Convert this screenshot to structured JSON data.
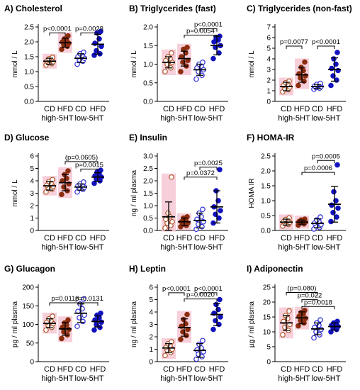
{
  "figure": {
    "colors": {
      "cd_high": "#b0572a",
      "hfd_high": "#8b2d0e",
      "cd_low": "#2a2ad6",
      "hfd_low": "#1212c0",
      "highlight_high": "#f6c7d3",
      "highlight_low": "#cfd6f7",
      "axis": "#000000"
    }
  },
  "chart_data": [
    {
      "id": "A",
      "type": "scatter",
      "title": "A) Cholesterol",
      "ylabel": "mmol / L",
      "ylim": [
        0,
        2.5
      ],
      "yticks": [
        "0.0",
        "0.5",
        "1.0",
        "1.5",
        "2.0",
        "2.5"
      ],
      "categories": [
        "CD",
        "HFD",
        "CD",
        "HFD"
      ],
      "groups": [
        "high-5HT",
        "low-5HT"
      ],
      "series": [
        {
          "category": "CD",
          "group": "high-5HT",
          "hollow": true,
          "highlight": true,
          "mean": 1.35,
          "sd": 0.1,
          "values": [
            1.22,
            1.27,
            1.3,
            1.33,
            1.36,
            1.4,
            1.43,
            1.48
          ]
        },
        {
          "category": "HFD",
          "group": "high-5HT",
          "hollow": false,
          "highlight": true,
          "mean": 1.97,
          "sd": 0.15,
          "values": [
            1.75,
            1.85,
            1.9,
            1.95,
            2.0,
            2.05,
            2.1,
            2.2
          ]
        },
        {
          "category": "CD",
          "group": "low-5HT",
          "hollow": true,
          "highlight": false,
          "mean": 1.45,
          "sd": 0.15,
          "values": [
            1.25,
            1.35,
            1.4,
            1.45,
            1.5,
            1.55,
            1.6,
            1.65
          ]
        },
        {
          "category": "HFD",
          "group": "low-5HT",
          "hollow": false,
          "highlight": false,
          "mean": 1.92,
          "sd": 0.33,
          "values": [
            1.55,
            1.6,
            1.7,
            1.85,
            1.95,
            2.1,
            2.3,
            2.35
          ]
        }
      ],
      "annotations": [
        {
          "from": 0,
          "to": 1,
          "y": 2.3,
          "text": "p<0.0001"
        },
        {
          "from": 2,
          "to": 3,
          "y": 2.3,
          "text": "p=0.0028"
        }
      ]
    },
    {
      "id": "B",
      "type": "scatter",
      "title": "B) Triglycerides (fast)",
      "ylabel": "mmol / L",
      "ylim": [
        0,
        2.0
      ],
      "yticks": [
        "0.0",
        "0.5",
        "1.0",
        "1.5",
        "2.0"
      ],
      "categories": [
        "CD",
        "HFD",
        "CD",
        "HFD"
      ],
      "groups": [
        "high-5HT",
        "low-5HT"
      ],
      "series": [
        {
          "category": "CD",
          "group": "high-5HT",
          "hollow": true,
          "highlight": true,
          "mean": 1.05,
          "sd": 0.15,
          "values": [
            0.8,
            0.9,
            1.0,
            1.05,
            1.1,
            1.15,
            1.2,
            1.3
          ]
        },
        {
          "category": "HFD",
          "group": "high-5HT",
          "hollow": false,
          "highlight": true,
          "mean": 1.15,
          "sd": 0.2,
          "values": [
            0.8,
            0.95,
            1.05,
            1.1,
            1.2,
            1.3,
            1.4,
            1.45
          ]
        },
        {
          "category": "CD",
          "group": "low-5HT",
          "hollow": true,
          "highlight": false,
          "mean": 0.85,
          "sd": 0.15,
          "values": [
            0.6,
            0.7,
            0.8,
            0.85,
            0.9,
            0.95,
            1.0,
            1.05
          ]
        },
        {
          "category": "HFD",
          "group": "low-5HT",
          "hollow": false,
          "highlight": false,
          "mean": 1.5,
          "sd": 0.25,
          "values": [
            1.15,
            1.3,
            1.45,
            1.5,
            1.6,
            1.65,
            1.7,
            1.75
          ]
        }
      ],
      "annotations": [
        {
          "from": 1,
          "to": 3,
          "y": 1.78,
          "text": "p=0.0054"
        },
        {
          "from": 2,
          "to": 3,
          "y": 1.95,
          "text": "p<0.0001"
        }
      ]
    },
    {
      "id": "C",
      "type": "scatter",
      "title": "C) Triglycerides (non-fast)",
      "ylabel": "mmol / L",
      "ylim": [
        0,
        7
      ],
      "yticks": [
        "0",
        "1",
        "2",
        "3",
        "4",
        "5",
        "6",
        "7"
      ],
      "categories": [
        "CD",
        "HFD",
        "CD",
        "HFD"
      ],
      "groups": [
        "high-5HT",
        "low-5HT"
      ],
      "series": [
        {
          "category": "CD",
          "group": "high-5HT",
          "hollow": true,
          "highlight": true,
          "mean": 1.4,
          "sd": 0.4,
          "values": [
            0.9,
            1.1,
            1.2,
            1.35,
            1.5,
            1.6,
            1.75,
            1.9
          ]
        },
        {
          "category": "HFD",
          "group": "high-5HT",
          "hollow": false,
          "highlight": true,
          "mean": 2.5,
          "sd": 0.7,
          "values": [
            1.5,
            1.9,
            2.2,
            2.4,
            2.6,
            2.9,
            3.2,
            3.7
          ]
        },
        {
          "category": "CD",
          "group": "low-5HT",
          "hollow": true,
          "highlight": false,
          "mean": 1.4,
          "sd": 0.2,
          "values": [
            1.15,
            1.25,
            1.3,
            1.4,
            1.45,
            1.5,
            1.6,
            1.7
          ]
        },
        {
          "category": "HFD",
          "group": "low-5HT",
          "hollow": false,
          "highlight": false,
          "mean": 3.0,
          "sd": 1.1,
          "values": [
            1.5,
            2.0,
            2.4,
            2.9,
            3.1,
            3.5,
            4.0,
            4.6
          ]
        }
      ],
      "annotations": [
        {
          "from": 0,
          "to": 1,
          "y": 5.2,
          "text": "p=0.0077"
        },
        {
          "from": 2,
          "to": 3,
          "y": 5.2,
          "text": "p<0.0001"
        }
      ]
    },
    {
      "id": "D",
      "type": "scatter",
      "title": "D) Glucose",
      "ylabel": "mmol / L",
      "ylim": [
        0,
        6
      ],
      "yticks": [
        "0",
        "1",
        "2",
        "3",
        "4",
        "5",
        "6"
      ],
      "categories": [
        "CD",
        "HFD",
        "CD",
        "HFD"
      ],
      "groups": [
        "high-5HT",
        "low-5HT"
      ],
      "series": [
        {
          "category": "CD",
          "group": "high-5HT",
          "hollow": true,
          "highlight": true,
          "mean": 3.6,
          "sd": 0.35,
          "values": [
            3.1,
            3.3,
            3.45,
            3.55,
            3.65,
            3.8,
            3.95,
            4.1
          ]
        },
        {
          "category": "HFD",
          "group": "high-5HT",
          "hollow": false,
          "highlight": true,
          "mean": 3.85,
          "sd": 0.65,
          "values": [
            2.9,
            3.2,
            3.5,
            3.75,
            4.0,
            4.2,
            4.5,
            4.8
          ]
        },
        {
          "category": "CD",
          "group": "low-5HT",
          "hollow": true,
          "highlight": false,
          "mean": 3.5,
          "sd": 0.25,
          "values": [
            3.1,
            3.3,
            3.4,
            3.5,
            3.6,
            3.65,
            3.75,
            3.9
          ]
        },
        {
          "category": "HFD",
          "group": "low-5HT",
          "hollow": false,
          "highlight": false,
          "mean": 4.3,
          "sd": 0.35,
          "values": [
            3.8,
            4.0,
            4.15,
            4.3,
            4.4,
            4.55,
            4.7,
            4.85
          ]
        }
      ],
      "annotations": [
        {
          "from": 1,
          "to": 3,
          "y": 5.55,
          "text": "(p=0.0605)"
        },
        {
          "from": 2,
          "to": 3,
          "y": 4.95,
          "text": "p=0.0015"
        }
      ]
    },
    {
      "id": "E",
      "type": "scatter",
      "title": "E) Insulin",
      "ylabel": "ng / ml plasma",
      "ylim": [
        0,
        3.0
      ],
      "yticks": [
        "0.0",
        "0.5",
        "1.0",
        "1.5",
        "2.0",
        "2.5",
        "3.0"
      ],
      "categories": [
        "CD",
        "HFD",
        "CD",
        "HFD"
      ],
      "groups": [
        "high-5HT",
        "low-5HT"
      ],
      "series": [
        {
          "category": "CD",
          "group": "high-5HT",
          "hollow": true,
          "highlight": true,
          "mean": 0.55,
          "sd": 0.6,
          "values": [
            0.1,
            0.2,
            0.3,
            0.35,
            0.45,
            0.55,
            0.7,
            2.15
          ]
        },
        {
          "category": "HFD",
          "group": "high-5HT",
          "hollow": false,
          "highlight": true,
          "mean": 0.35,
          "sd": 0.15,
          "values": [
            0.15,
            0.2,
            0.25,
            0.3,
            0.35,
            0.45,
            0.5,
            0.55
          ]
        },
        {
          "category": "CD",
          "group": "low-5HT",
          "hollow": true,
          "highlight": false,
          "mean": 0.4,
          "sd": 0.3,
          "values": [
            0.05,
            0.15,
            0.25,
            0.35,
            0.45,
            0.55,
            0.7,
            0.85
          ]
        },
        {
          "category": "HFD",
          "group": "low-5HT",
          "hollow": false,
          "highlight": false,
          "mean": 0.95,
          "sd": 0.65,
          "values": [
            0.3,
            0.5,
            0.65,
            0.8,
            0.95,
            1.2,
            1.6,
            2.45
          ]
        }
      ],
      "annotations": [
        {
          "from": 1,
          "to": 3,
          "y": 2.15,
          "text": "p=0.0372"
        },
        {
          "from": 2,
          "to": 3,
          "y": 2.55,
          "text": "p=0.0025"
        }
      ]
    },
    {
      "id": "F",
      "type": "scatter",
      "title": "F) HOMA-IR",
      "ylabel": "HOMA IR",
      "ylim": [
        0,
        2.5
      ],
      "yticks": [
        "0.0",
        "0.5",
        "1.0",
        "1.5",
        "2.0",
        "2.5"
      ],
      "categories": [
        "CD",
        "HFD",
        "CD",
        "HFD"
      ],
      "groups": [
        "high-5HT",
        "low-5HT"
      ],
      "series": [
        {
          "category": "CD",
          "group": "high-5HT",
          "hollow": true,
          "highlight": true,
          "mean": 0.28,
          "sd": 0.1,
          "values": [
            0.15,
            0.2,
            0.24,
            0.27,
            0.3,
            0.33,
            0.37,
            0.42
          ]
        },
        {
          "category": "HFD",
          "group": "high-5HT",
          "hollow": false,
          "highlight": true,
          "mean": 0.28,
          "sd": 0.07,
          "values": [
            0.18,
            0.22,
            0.25,
            0.28,
            0.3,
            0.32,
            0.35,
            0.38
          ]
        },
        {
          "category": "CD",
          "group": "low-5HT",
          "hollow": true,
          "highlight": false,
          "mean": 0.24,
          "sd": 0.15,
          "values": [
            0.05,
            0.1,
            0.15,
            0.2,
            0.25,
            0.3,
            0.35,
            0.45
          ]
        },
        {
          "category": "HFD",
          "group": "low-5HT",
          "hollow": false,
          "highlight": false,
          "mean": 0.88,
          "sd": 0.6,
          "values": [
            0.3,
            0.45,
            0.6,
            0.75,
            0.85,
            1.0,
            1.3,
            2.2
          ]
        }
      ],
      "annotations": [
        {
          "from": 1,
          "to": 3,
          "y": 1.95,
          "text": "p=0.0006"
        },
        {
          "from": 2,
          "to": 3,
          "y": 2.35,
          "text": "p=0.0005"
        }
      ]
    },
    {
      "id": "G",
      "type": "scatter",
      "title": "G) Glucagon",
      "ylabel": "pg / ml plasma",
      "ylim": [
        0,
        200
      ],
      "yticks": [
        "0",
        "50",
        "100",
        "150",
        "200"
      ],
      "categories": [
        "CD",
        "HFD",
        "CD",
        "HFD"
      ],
      "groups": [
        "high-5HT",
        "low-5HT"
      ],
      "series": [
        {
          "category": "CD",
          "group": "high-5HT",
          "hollow": true,
          "highlight": true,
          "mean": 103,
          "sd": 12,
          "values": [
            85,
            92,
            98,
            102,
            106,
            110,
            115,
            122
          ]
        },
        {
          "category": "HFD",
          "group": "high-5HT",
          "hollow": false,
          "highlight": true,
          "mean": 88,
          "sd": 17,
          "values": [
            62,
            72,
            80,
            86,
            92,
            98,
            104,
            112
          ]
        },
        {
          "category": "CD",
          "group": "low-5HT",
          "hollow": true,
          "highlight": false,
          "mean": 130,
          "sd": 25,
          "values": [
            95,
            108,
            118,
            125,
            135,
            142,
            155,
            168
          ]
        },
        {
          "category": "HFD",
          "group": "low-5HT",
          "hollow": false,
          "highlight": false,
          "mean": 108,
          "sd": 15,
          "values": [
            85,
            92,
            100,
            106,
            112,
            118,
            125,
            130
          ]
        }
      ],
      "annotations": [
        {
          "from": 0,
          "to": 2,
          "y": 158,
          "text": "p=0.0118"
        },
        {
          "from": 2,
          "to": 3,
          "y": 158,
          "text": "p=0.0131"
        }
      ]
    },
    {
      "id": "H",
      "type": "scatter",
      "title": "H) Leptin",
      "ylabel": "ng / ml plasma",
      "ylim": [
        0,
        6
      ],
      "yticks": [
        "0",
        "1",
        "2",
        "3",
        "4",
        "5",
        "6"
      ],
      "categories": [
        "CD",
        "HFD",
        "CD",
        "HFD"
      ],
      "groups": [
        "high-5HT",
        "low-5HT"
      ],
      "series": [
        {
          "category": "CD",
          "group": "high-5HT",
          "hollow": true,
          "highlight": true,
          "mean": 1.1,
          "sd": 0.35,
          "values": [
            0.5,
            0.75,
            0.9,
            1.0,
            1.15,
            1.3,
            1.45,
            1.6
          ]
        },
        {
          "category": "HFD",
          "group": "high-5HT",
          "hollow": false,
          "highlight": true,
          "mean": 2.75,
          "sd": 0.7,
          "values": [
            1.8,
            2.1,
            2.4,
            2.6,
            2.85,
            3.05,
            3.4,
            3.8
          ]
        },
        {
          "category": "CD",
          "group": "low-5HT",
          "hollow": true,
          "highlight": false,
          "mean": 0.9,
          "sd": 0.55,
          "values": [
            0.2,
            0.4,
            0.6,
            0.8,
            0.95,
            1.1,
            1.4,
            1.7
          ]
        },
        {
          "category": "HFD",
          "group": "low-5HT",
          "hollow": false,
          "highlight": false,
          "mean": 3.8,
          "sd": 0.9,
          "values": [
            2.6,
            3.0,
            3.3,
            3.6,
            3.9,
            4.2,
            4.6,
            5.0
          ]
        }
      ],
      "annotations": [
        {
          "from": 0,
          "to": 1,
          "y": 5.55,
          "text": "p<0.0001"
        },
        {
          "from": 1,
          "to": 3,
          "y": 5.05,
          "text": "p=0.0020"
        },
        {
          "from": 2,
          "to": 3,
          "y": 5.55,
          "text": "p<0.0001"
        }
      ]
    },
    {
      "id": "I",
      "type": "scatter",
      "title": "I) Adiponectin",
      "ylabel": "µg / ml plasma",
      "ylim": [
        0,
        25
      ],
      "yticks": [
        "0",
        "5",
        "10",
        "15",
        "20",
        "25"
      ],
      "categories": [
        "CD",
        "HFD",
        "CD",
        "HFD"
      ],
      "groups": [
        "high-5HT",
        "low-5HT"
      ],
      "series": [
        {
          "category": "CD",
          "group": "high-5HT",
          "hollow": true,
          "highlight": true,
          "mean": 13,
          "sd": 2.5,
          "values": [
            9,
            10.5,
            11.5,
            12.5,
            13.5,
            14.5,
            15.5,
            17
          ]
        },
        {
          "category": "HFD",
          "group": "high-5HT",
          "hollow": false,
          "highlight": true,
          "mean": 14.7,
          "sd": 2.0,
          "values": [
            12,
            13,
            13.8,
            14.5,
            15.2,
            16,
            16.5,
            17.2
          ]
        },
        {
          "category": "CD",
          "group": "low-5HT",
          "hollow": true,
          "highlight": false,
          "mean": 11,
          "sd": 2.0,
          "values": [
            8,
            9,
            10,
            10.8,
            11.5,
            12.2,
            13,
            14
          ]
        },
        {
          "category": "HFD",
          "group": "low-5HT",
          "hollow": false,
          "highlight": false,
          "mean": 11.8,
          "sd": 1.2,
          "values": [
            10,
            10.8,
            11.3,
            11.8,
            12.2,
            12.6,
            13,
            13.5
          ]
        }
      ],
      "annotations": [
        {
          "from": 0,
          "to": 2,
          "y": 23.2,
          "text": "(p=0.080)"
        },
        {
          "from": 1,
          "to": 2,
          "y": 20.8,
          "text": "p=0.022"
        },
        {
          "from": 1,
          "to": 3,
          "y": 18.5,
          "text": "p=0.0018"
        }
      ]
    }
  ]
}
